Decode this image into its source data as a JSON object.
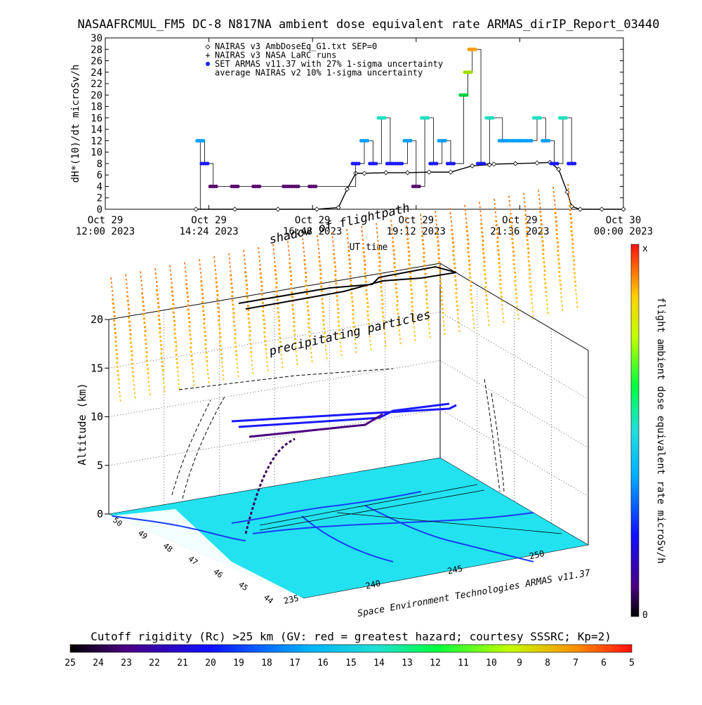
{
  "header": {
    "title": "NASAAFRCMUL_FM5 DC-8   N817NA ambient dose equivalent rate ARMAS_dirIP_Report_03440"
  },
  "colors": {
    "axis": "#000000",
    "nairas_dose": "#000000",
    "armas_palette_low": "#5a0a6e",
    "armas_palette_high": "#ff9c00",
    "map_fill": "#22e2f0",
    "coast": "#1a3cff",
    "particles": "#ff7a1a"
  },
  "chart_data": [
    {
      "type": "scatter",
      "title": "NASAAFRCMUL_FM5 DC-8   N817NA ambient dose equivalent rate ARMAS_dirIP_Report_03440",
      "ylabel": "dH*(10)/dt microSv/h",
      "xlabel": "UT time",
      "ylim": [
        0,
        30
      ],
      "yticks": [
        0,
        2,
        4,
        6,
        8,
        10,
        12,
        14,
        16,
        18,
        20,
        22,
        24,
        26,
        28,
        30
      ],
      "xticks": [
        {
          "day": "Oct 29",
          "time": "12:00 2023"
        },
        {
          "day": "Oct 29",
          "time": "14:24 2023"
        },
        {
          "day": "Oct 29",
          "time": "16:48 2023"
        },
        {
          "day": "Oct 29",
          "time": "19:12 2023"
        },
        {
          "day": "Oct 29",
          "time": "21:36 2023"
        },
        {
          "day": "Oct 30",
          "time": "00:00 2023"
        }
      ],
      "xlim_hours": [
        12,
        24
      ],
      "legend": [
        {
          "symbol": "◇",
          "label": "NAIRAS v3 AmbDoseEq_G1.txt SEP=0"
        },
        {
          "symbol": "+",
          "label": "NAIRAS v3 NASA LaRC runs"
        },
        {
          "symbol": "●",
          "label": "SET ARMAS v11.37 with 27% 1-sigma uncertainty"
        },
        {
          "symbol": "",
          "label": "average NAIRAS v2 10% 1-sigma uncertainty"
        }
      ],
      "legend_position": "top-left",
      "series": [
        {
          "name": "NAIRAS v3 AmbDoseEq_G1.txt SEP=0",
          "x_hours": [
            14.1,
            15.0,
            16.0,
            16.9,
            17.4,
            17.6,
            17.8,
            18.0,
            18.5,
            19.0,
            19.5,
            20.0,
            20.5,
            20.9,
            21.0,
            21.5,
            22.0,
            22.3,
            22.5,
            22.7,
            22.8,
            23.0,
            23.5,
            24.0
          ],
          "values": [
            0,
            0,
            0,
            0,
            0.3,
            3.5,
            6.3,
            6.3,
            6.4,
            6.4,
            6.5,
            6.5,
            7.6,
            7.8,
            7.9,
            8.0,
            8.1,
            8.2,
            7.0,
            3.0,
            0.5,
            0,
            0,
            0
          ]
        },
        {
          "name": "SET ARMAS v11.37 with 27% 1-sigma uncertainty",
          "x_hours": [
            14.2,
            14.3,
            14.5,
            15.0,
            15.5,
            16.2,
            16.4,
            16.8,
            17.8,
            18.0,
            18.2,
            18.4,
            18.6,
            18.8,
            19.0,
            19.2,
            19.4,
            19.6,
            19.8,
            20.0,
            20.3,
            20.4,
            20.5,
            20.7,
            20.9,
            21.2,
            21.4,
            21.6,
            21.8,
            22.0,
            22.2,
            22.4,
            22.6,
            22.8
          ],
          "values": [
            12,
            8,
            4,
            4,
            4,
            4,
            4,
            4,
            8,
            12,
            8,
            16,
            8,
            8,
            12,
            4,
            16,
            8,
            12,
            8,
            20,
            24,
            28,
            8,
            16,
            12,
            12,
            12,
            12,
            16,
            12,
            8,
            16,
            8
          ]
        }
      ]
    },
    {
      "type": "scatter",
      "title": "shadow of flightpath",
      "zlabel": "Altitude (km)",
      "zticks": [
        0,
        5,
        10,
        15,
        20
      ],
      "xticks": [
        235,
        240,
        245,
        250
      ],
      "yticks": [
        44,
        45,
        46,
        47,
        48,
        49,
        50
      ],
      "annotations": [
        "shadow of flightpath",
        "precipitating particles",
        "Space Environment Technologies ARMAS v11.37",
        "x",
        "0"
      ],
      "colorbar_label": "flight ambient dose equivalent rate microSv/h",
      "colorbar_top": "x",
      "colorbar_bottom": "0"
    }
  ],
  "footer": {
    "cutoff_title": "Cutoff rigidity (Rc) >25 km (GV: red = greatest hazard; courtesy SSSRC; Kp=2)",
    "cutoff_ticks": [
      "25",
      "24",
      "23",
      "22",
      "21",
      "20",
      "19",
      "18",
      "17",
      "16",
      "15",
      "14",
      "13",
      "12",
      "11",
      "10",
      "9",
      "8",
      "7",
      "6",
      "5"
    ]
  },
  "plot3d": {
    "credit": "Space Environment Technologies ARMAS v11.37",
    "shadow_label": "shadow of flightpath",
    "particles_label": "precipitating particles",
    "xlabel_hidden": "UT time"
  }
}
